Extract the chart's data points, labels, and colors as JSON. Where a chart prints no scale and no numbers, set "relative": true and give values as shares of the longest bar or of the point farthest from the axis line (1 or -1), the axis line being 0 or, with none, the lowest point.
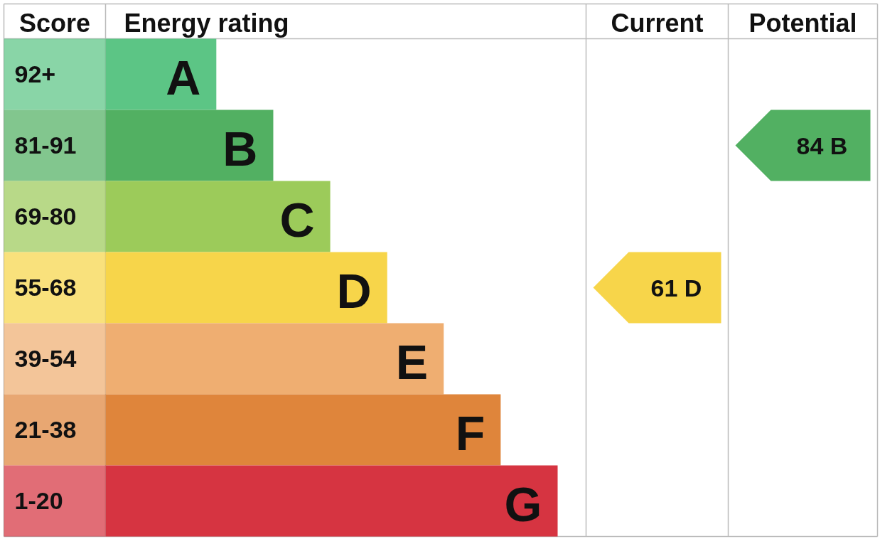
{
  "chart_data": {
    "type": "bar",
    "orientation": "horizontal",
    "relative": true,
    "categories": [
      "A",
      "B",
      "C",
      "D",
      "E",
      "F",
      "G"
    ],
    "values": [
      0.245,
      0.371,
      0.497,
      0.623,
      0.748,
      0.874,
      1
    ],
    "colors": [
      "#5cc585",
      "#52b062",
      "#9ccb5a",
      "#f7d54a",
      "#efae71",
      "#df853b",
      "#d63441"
    ],
    "annotations": [
      "Score",
      "Energy rating",
      "Current",
      "Potential",
      "92+",
      "81-91",
      "69-80",
      "55-68",
      "39-54",
      "21-38",
      "1-20",
      "61 D",
      "84 B"
    ]
  }
}
